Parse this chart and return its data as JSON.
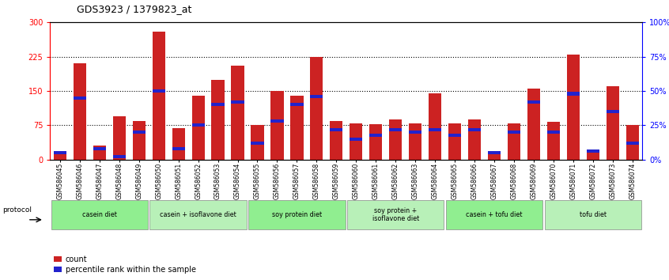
{
  "title": "GDS3923 / 1379823_at",
  "samples": [
    "GSM586045",
    "GSM586046",
    "GSM586047",
    "GSM586048",
    "GSM586049",
    "GSM586050",
    "GSM586051",
    "GSM586052",
    "GSM586053",
    "GSM586054",
    "GSM586055",
    "GSM586056",
    "GSM586057",
    "GSM586058",
    "GSM586059",
    "GSM586060",
    "GSM586061",
    "GSM586062",
    "GSM586063",
    "GSM586064",
    "GSM586065",
    "GSM586066",
    "GSM586067",
    "GSM586068",
    "GSM586069",
    "GSM586070",
    "GSM586071",
    "GSM586072",
    "GSM586073",
    "GSM586074"
  ],
  "counts": [
    15,
    210,
    30,
    95,
    85,
    280,
    68,
    140,
    175,
    205,
    75,
    150,
    140,
    225,
    85,
    80,
    78,
    88,
    80,
    145,
    80,
    88,
    15,
    80,
    155,
    82,
    230,
    18,
    160,
    75
  ],
  "percentile": [
    5,
    45,
    8,
    2,
    20,
    50,
    8,
    25,
    40,
    42,
    12,
    28,
    40,
    46,
    22,
    15,
    18,
    22,
    20,
    22,
    18,
    22,
    5,
    20,
    42,
    20,
    48,
    6,
    35,
    12
  ],
  "groups": [
    {
      "label": "casein diet",
      "start": 0,
      "end": 5,
      "color": "#90ee90"
    },
    {
      "label": "casein + isoflavone diet",
      "start": 5,
      "end": 10,
      "color": "#b8f0b8"
    },
    {
      "label": "soy protein diet",
      "start": 10,
      "end": 15,
      "color": "#90ee90"
    },
    {
      "label": "soy protein +\nisoflavone diet",
      "start": 15,
      "end": 20,
      "color": "#b8f0b8"
    },
    {
      "label": "casein + tofu diet",
      "start": 20,
      "end": 25,
      "color": "#90ee90"
    },
    {
      "label": "tofu diet",
      "start": 25,
      "end": 30,
      "color": "#b8f0b8"
    }
  ],
  "bar_color": "#cc2222",
  "percentile_color": "#2222cc",
  "ylim_left": [
    0,
    300
  ],
  "ylim_right": [
    0,
    100
  ],
  "yticks_left": [
    0,
    75,
    150,
    225,
    300
  ],
  "yticks_right": [
    0,
    25,
    50,
    75,
    100
  ],
  "grid_values": [
    75,
    150,
    225
  ],
  "background_color": "#ffffff"
}
